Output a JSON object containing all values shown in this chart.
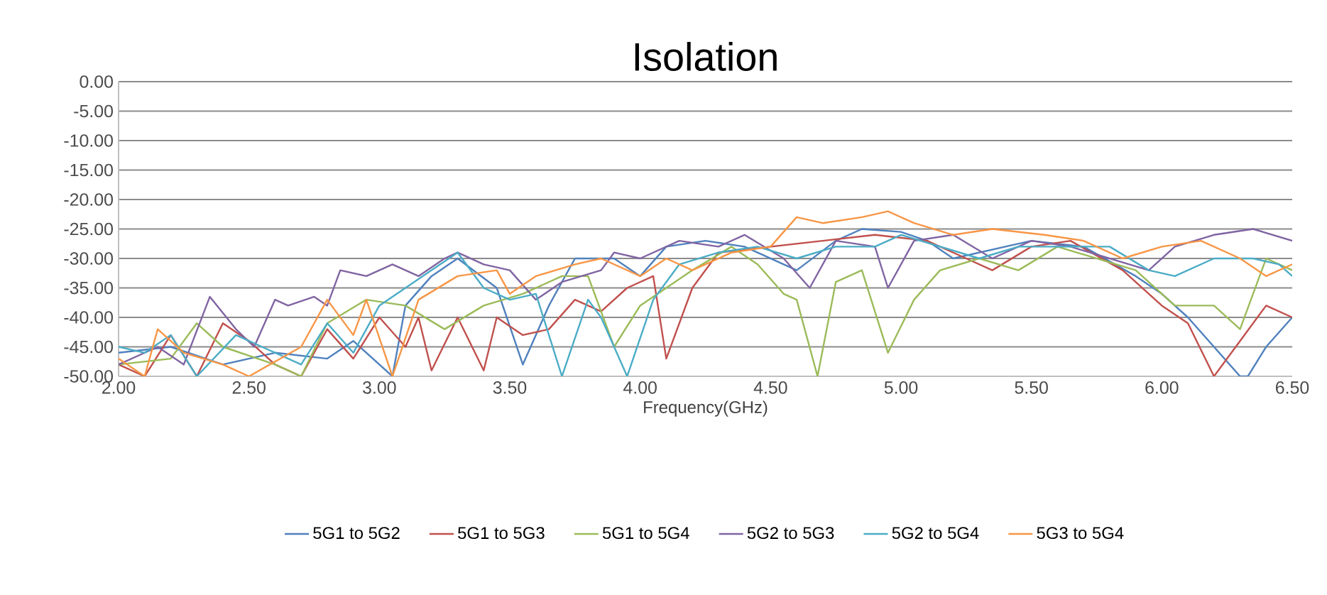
{
  "chart_data": {
    "type": "line",
    "title": "Isolation",
    "xlabel": "Frequency(GHz)",
    "xlim": [
      2.0,
      6.5
    ],
    "ylim": [
      -50,
      0
    ],
    "xticks": [
      {
        "value": 2.0,
        "label": "2.00"
      },
      {
        "value": 2.5,
        "label": "2.50"
      },
      {
        "value": 3.0,
        "label": "3.00"
      },
      {
        "value": 3.5,
        "label": "3.50"
      },
      {
        "value": 4.0,
        "label": "4.00"
      },
      {
        "value": 4.5,
        "label": "4.50"
      },
      {
        "value": 5.0,
        "label": "5.00"
      },
      {
        "value": 5.5,
        "label": "5.50"
      },
      {
        "value": 6.0,
        "label": "6.00"
      },
      {
        "value": 6.5,
        "label": "6.50"
      }
    ],
    "yticks": [
      {
        "value": 0,
        "label": "0.00"
      },
      {
        "value": -5,
        "label": "-5.00"
      },
      {
        "value": -10,
        "label": "-10.00"
      },
      {
        "value": -15,
        "label": "-15.00"
      },
      {
        "value": -20,
        "label": "-20.00"
      },
      {
        "value": -25,
        "label": "-25.00"
      },
      {
        "value": -30,
        "label": "-30.00"
      },
      {
        "value": -35,
        "label": "-35.00"
      },
      {
        "value": -40,
        "label": "-40.00"
      },
      {
        "value": -45,
        "label": "-45.00"
      },
      {
        "value": -50,
        "label": "-50.00"
      }
    ],
    "grid": "y",
    "legend": "bottom",
    "marker": "none",
    "line_style": "solid",
    "series": [
      {
        "name": "5G1 to 5G2",
        "color": "#4f81bd",
        "x": [
          2.0,
          2.2,
          2.4,
          2.6,
          2.8,
          2.9,
          3.05,
          3.1,
          3.2,
          3.3,
          3.45,
          3.55,
          3.65,
          3.75,
          3.9,
          4.0,
          4.1,
          4.25,
          4.4,
          4.5,
          4.6,
          4.75,
          4.85,
          5.0,
          5.1,
          5.2,
          5.4,
          5.5,
          5.7,
          5.9,
          6.0,
          6.1,
          6.2,
          6.3,
          6.33,
          6.4,
          6.5
        ],
        "values": [
          -46,
          -45,
          -48,
          -46,
          -47,
          -44,
          -50,
          -38,
          -33,
          -30,
          -35,
          -48,
          -38,
          -30,
          -30,
          -33,
          -28,
          -27,
          -28,
          -30,
          -32,
          -27,
          -25,
          -25.5,
          -27,
          -30,
          -28,
          -27,
          -28,
          -33,
          -36,
          -40,
          -45,
          -50,
          -50,
          -45,
          -40
        ]
      },
      {
        "name": "5G1 to 5G3",
        "color": "#c0504d",
        "x": [
          2.0,
          2.1,
          2.2,
          2.3,
          2.4,
          2.5,
          2.6,
          2.7,
          2.8,
          2.9,
          3.0,
          3.1,
          3.15,
          3.2,
          3.3,
          3.4,
          3.45,
          3.55,
          3.65,
          3.75,
          3.85,
          3.95,
          4.05,
          4.1,
          4.2,
          4.3,
          4.5,
          4.7,
          4.9,
          5.1,
          5.25,
          5.35,
          5.5,
          5.65,
          5.85,
          6.0,
          6.1,
          6.2,
          6.3,
          6.4,
          6.5
        ],
        "values": [
          -48,
          -50,
          -43,
          -50,
          -41,
          -44,
          -48,
          -50,
          -42,
          -47,
          -40,
          -45,
          -40,
          -49,
          -40,
          -49,
          -40,
          -43,
          -42,
          -37,
          -39,
          -35,
          -33,
          -47,
          -35,
          -29,
          -28,
          -27,
          -26,
          -27,
          -30,
          -32,
          -28,
          -27,
          -32,
          -38,
          -41,
          -50,
          -44,
          -38,
          -40
        ]
      },
      {
        "name": "5G1 to 5G4",
        "color": "#9bbb59",
        "x": [
          2.0,
          2.2,
          2.3,
          2.4,
          2.6,
          2.7,
          2.8,
          2.95,
          3.1,
          3.25,
          3.4,
          3.55,
          3.7,
          3.8,
          3.9,
          4.0,
          4.2,
          4.35,
          4.45,
          4.55,
          4.6,
          4.68,
          4.75,
          4.85,
          4.95,
          5.05,
          5.15,
          5.3,
          5.45,
          5.6,
          5.75,
          5.9,
          6.05,
          6.2,
          6.3,
          6.4,
          6.5
        ],
        "values": [
          -48,
          -47,
          -41,
          -45,
          -48,
          -50,
          -41,
          -37,
          -38,
          -42,
          -38,
          -36,
          -33,
          -33,
          -45,
          -38,
          -32,
          -28,
          -31,
          -36,
          -37,
          -50,
          -34,
          -32,
          -46,
          -37,
          -32,
          -30,
          -32,
          -28,
          -30,
          -32,
          -38,
          -38,
          -42,
          -30,
          -32
        ]
      },
      {
        "name": "5G2 to 5G3",
        "color": "#8064a2",
        "x": [
          2.0,
          2.15,
          2.25,
          2.35,
          2.45,
          2.52,
          2.6,
          2.65,
          2.75,
          2.8,
          2.85,
          2.95,
          3.05,
          3.15,
          3.25,
          3.3,
          3.4,
          3.5,
          3.6,
          3.7,
          3.85,
          3.9,
          4.0,
          4.15,
          4.3,
          4.4,
          4.55,
          4.65,
          4.75,
          4.9,
          4.95,
          5.05,
          5.2,
          5.35,
          5.5,
          5.65,
          5.8,
          5.95,
          6.05,
          6.2,
          6.35,
          6.5
        ],
        "values": [
          -48,
          -45,
          -48,
          -36.5,
          -42,
          -45,
          -37,
          -38,
          -36.5,
          -38,
          -32,
          -33,
          -31,
          -33,
          -30,
          -29,
          -31,
          -32,
          -37,
          -34,
          -32,
          -29,
          -30,
          -27,
          -28,
          -26,
          -30,
          -35,
          -27,
          -28,
          -35,
          -27,
          -26,
          -30,
          -27,
          -28,
          -30,
          -32,
          -28,
          -26,
          -25,
          -27
        ]
      },
      {
        "name": "5G2 to 5G4",
        "color": "#4bacc6",
        "x": [
          2.0,
          2.1,
          2.2,
          2.3,
          2.45,
          2.55,
          2.7,
          2.8,
          2.9,
          3.0,
          3.1,
          3.2,
          3.3,
          3.4,
          3.5,
          3.6,
          3.7,
          3.8,
          3.85,
          3.95,
          4.05,
          4.15,
          4.3,
          4.45,
          4.6,
          4.75,
          4.9,
          5.0,
          5.15,
          5.3,
          5.45,
          5.6,
          5.8,
          5.95,
          6.05,
          6.2,
          6.35,
          6.45,
          6.5
        ],
        "values": [
          -45,
          -46,
          -43,
          -50,
          -43,
          -45,
          -48,
          -41,
          -46,
          -38,
          -35,
          -32,
          -29,
          -35,
          -37,
          -36,
          -50,
          -37,
          -40,
          -50,
          -37,
          -31,
          -29,
          -28,
          -30,
          -28,
          -28,
          -26,
          -28,
          -30,
          -28,
          -28,
          -28,
          -32,
          -33,
          -30,
          -30,
          -31,
          -33
        ]
      },
      {
        "name": "5G3 to 5G4",
        "color": "#f79646",
        "x": [
          2.0,
          2.1,
          2.15,
          2.25,
          2.4,
          2.5,
          2.7,
          2.8,
          2.9,
          2.95,
          3.05,
          3.15,
          3.3,
          3.45,
          3.5,
          3.6,
          3.75,
          3.85,
          4.0,
          4.1,
          4.2,
          4.35,
          4.5,
          4.6,
          4.7,
          4.85,
          4.95,
          5.05,
          5.2,
          5.35,
          5.55,
          5.7,
          5.85,
          6.0,
          6.15,
          6.3,
          6.4,
          6.5
        ],
        "values": [
          -47,
          -50,
          -42,
          -46,
          -48,
          -50,
          -45,
          -37,
          -43,
          -37,
          -50,
          -37,
          -33,
          -32,
          -36,
          -33,
          -31,
          -30,
          -33,
          -30,
          -32,
          -29,
          -28,
          -23,
          -24,
          -23,
          -22,
          -24,
          -26,
          -25,
          -26,
          -27,
          -30,
          -28,
          -27,
          -30,
          -33,
          -31
        ]
      }
    ]
  }
}
